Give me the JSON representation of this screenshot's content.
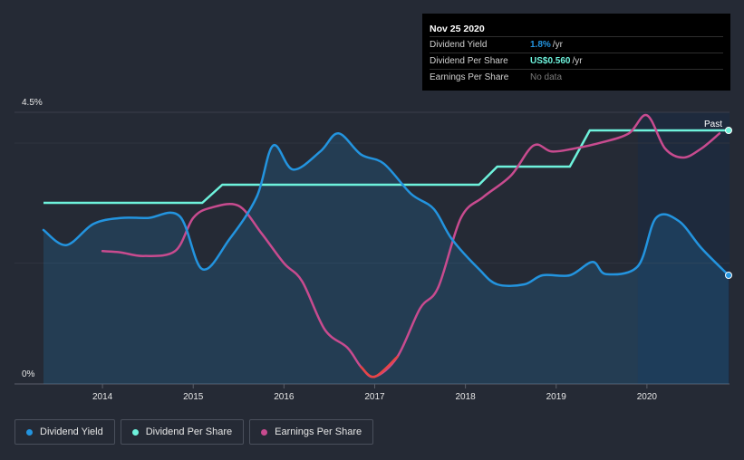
{
  "tooltip": {
    "date": "Nov 25 2020",
    "rows": [
      {
        "name": "Dividend Yield",
        "value": "1.8%",
        "unit": "/yr",
        "color": "#2394df"
      },
      {
        "name": "Dividend Per Share",
        "value": "US$0.560",
        "unit": "/yr",
        "color": "#6ef2dc"
      },
      {
        "name": "Earnings Per Share",
        "value": "No data",
        "unit": "",
        "color": "#7a7a7a"
      }
    ]
  },
  "past_label": "Past",
  "legend": [
    {
      "label": "Dividend Yield",
      "color": "#2394df"
    },
    {
      "label": "Dividend Per Share",
      "color": "#6ef2dc"
    },
    {
      "label": "Earnings Per Share",
      "color": "#c84b8f"
    }
  ],
  "chart_data": {
    "type": "line",
    "x_ticks": [
      "2014",
      "2015",
      "2016",
      "2017",
      "2018",
      "2019",
      "2020"
    ],
    "y_ticks": [
      "4.5%",
      "0%"
    ],
    "ylim": [
      0,
      4.5
    ],
    "xlim": [
      2013.35,
      2020.9
    ],
    "highlight_from": 2019.9,
    "series": [
      {
        "name": "Dividend Yield",
        "unit": "%",
        "color": "#2394df",
        "points": [
          [
            2013.35,
            2.55
          ],
          [
            2013.6,
            2.3
          ],
          [
            2013.9,
            2.65
          ],
          [
            2014.2,
            2.75
          ],
          [
            2014.5,
            2.75
          ],
          [
            2014.85,
            2.78
          ],
          [
            2015.1,
            1.9
          ],
          [
            2015.4,
            2.4
          ],
          [
            2015.7,
            3.1
          ],
          [
            2015.88,
            3.95
          ],
          [
            2016.1,
            3.55
          ],
          [
            2016.4,
            3.85
          ],
          [
            2016.6,
            4.15
          ],
          [
            2016.85,
            3.8
          ],
          [
            2017.1,
            3.65
          ],
          [
            2017.4,
            3.15
          ],
          [
            2017.65,
            2.9
          ],
          [
            2017.85,
            2.4
          ],
          [
            2018.15,
            1.9
          ],
          [
            2018.35,
            1.65
          ],
          [
            2018.65,
            1.65
          ],
          [
            2018.85,
            1.8
          ],
          [
            2019.15,
            1.8
          ],
          [
            2019.4,
            2.02
          ],
          [
            2019.55,
            1.82
          ],
          [
            2019.9,
            1.95
          ],
          [
            2020.1,
            2.75
          ],
          [
            2020.35,
            2.7
          ],
          [
            2020.6,
            2.25
          ],
          [
            2020.9,
            1.8
          ]
        ]
      },
      {
        "name": "Dividend Per Share",
        "unit": "US$",
        "color": "#6ef2dc",
        "points": [
          [
            2013.35,
            3.0
          ],
          [
            2015.1,
            3.0
          ],
          [
            2015.32,
            3.3
          ],
          [
            2018.15,
            3.3
          ],
          [
            2018.35,
            3.6
          ],
          [
            2019.15,
            3.6
          ],
          [
            2019.37,
            4.2
          ],
          [
            2020.9,
            4.2
          ]
        ]
      },
      {
        "name": "Earnings Per Share",
        "unit": "US$",
        "color": "#c84b8f",
        "low_color": "#e84545",
        "points": [
          [
            2014.0,
            2.2
          ],
          [
            2014.2,
            2.18
          ],
          [
            2014.45,
            2.12
          ],
          [
            2014.8,
            2.2
          ],
          [
            2015.0,
            2.75
          ],
          [
            2015.2,
            2.92
          ],
          [
            2015.5,
            2.95
          ],
          [
            2015.75,
            2.5
          ],
          [
            2016.0,
            2.0
          ],
          [
            2016.2,
            1.7
          ],
          [
            2016.45,
            0.9
          ],
          [
            2016.7,
            0.6
          ],
          [
            2016.85,
            0.28
          ],
          [
            2017.0,
            0.12
          ],
          [
            2017.25,
            0.45
          ],
          [
            2017.5,
            1.25
          ],
          [
            2017.7,
            1.6
          ],
          [
            2017.95,
            2.75
          ],
          [
            2018.2,
            3.1
          ],
          [
            2018.5,
            3.45
          ],
          [
            2018.75,
            3.95
          ],
          [
            2018.95,
            3.85
          ],
          [
            2019.2,
            3.9
          ],
          [
            2019.5,
            4.0
          ],
          [
            2019.8,
            4.15
          ],
          [
            2020.0,
            4.45
          ],
          [
            2020.2,
            3.9
          ],
          [
            2020.4,
            3.75
          ],
          [
            2020.6,
            3.9
          ],
          [
            2020.8,
            4.15
          ]
        ]
      }
    ]
  }
}
